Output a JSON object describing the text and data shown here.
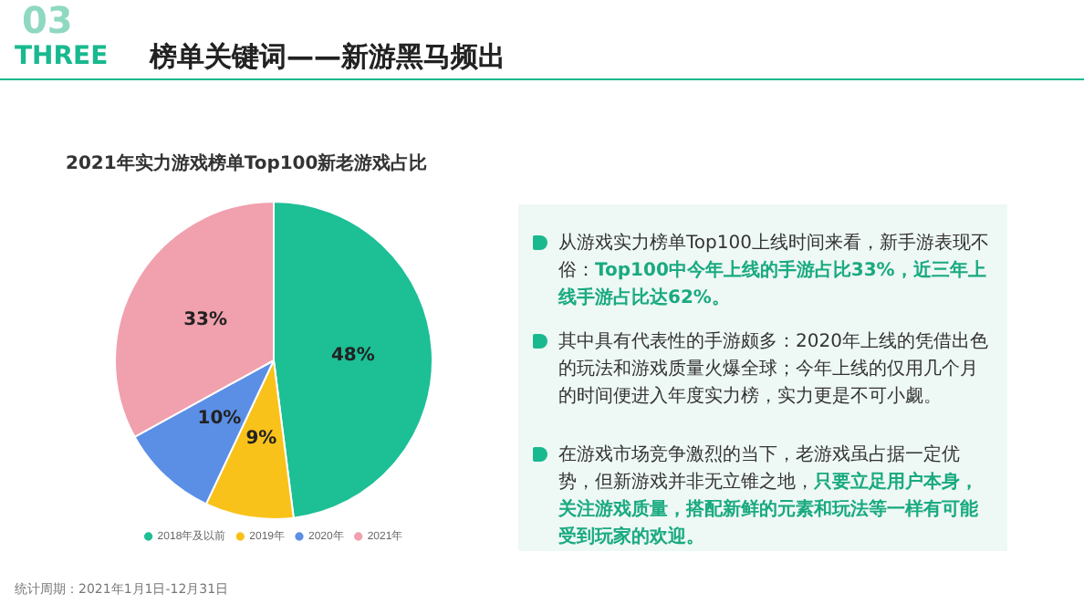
{
  "chart_data": {
    "type": "pie",
    "title": "2021年实力游戏榜单Top100新老游戏占比",
    "categories": [
      "2018年及以前",
      "2019年",
      "2020年",
      "2021年"
    ],
    "values": [
      48,
      9,
      10,
      33
    ],
    "colors": [
      "#1dbf95",
      "#f9c21a",
      "#5b8fe6",
      "#f1a0ae"
    ],
    "value_labels": [
      "48%",
      "9%",
      "10%",
      "33%"
    ],
    "legend": "bottom",
    "annotations": [
      "THREE",
      "03",
      "榜单关键词——新游黑马频出",
      "从游戏实力榜单Top100上线时间来看，新手游表现不俗：",
      "Top100中今年上线的手游占比33%，近三年上线手游占比达62%。",
      "其中具有代表性的手游颇多：2020年上线的凭借出色的玩法和游戏质量火爆全球；今年上线的仅用几个月的时间便进入年度实力榜，实力更是不可小觑。",
      "在游戏市场竞争激烈的当下，老游戏虽占据一定优势，但新游戏并非无立锥之地，",
      "只要立足用户本身，关注游戏质量，搭配新鲜的元素和玩法等一样有可能受到玩家的欢迎。",
      "统计周期：2021年1月1日-12月31日"
    ]
  }
}
